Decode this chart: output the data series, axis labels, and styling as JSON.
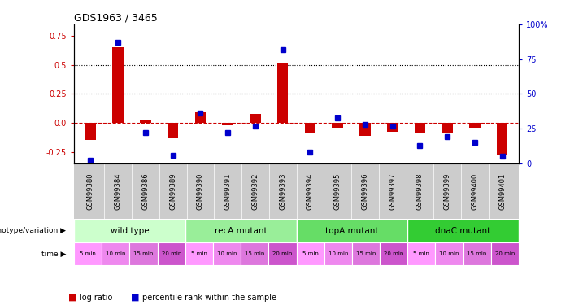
{
  "title": "GDS1963 / 3465",
  "samples": [
    "GSM99380",
    "GSM99384",
    "GSM99386",
    "GSM99389",
    "GSM99390",
    "GSM99391",
    "GSM99392",
    "GSM99393",
    "GSM99394",
    "GSM99395",
    "GSM99396",
    "GSM99397",
    "GSM99398",
    "GSM99399",
    "GSM99400",
    "GSM99401"
  ],
  "log_ratio": [
    -0.15,
    0.65,
    0.02,
    -0.13,
    0.09,
    -0.02,
    0.08,
    0.52,
    -0.09,
    -0.04,
    -0.11,
    -0.08,
    -0.09,
    -0.09,
    -0.04,
    -0.27
  ],
  "percentile": [
    0.02,
    0.87,
    0.22,
    0.06,
    0.36,
    0.22,
    0.27,
    0.82,
    0.08,
    0.33,
    0.28,
    0.27,
    0.13,
    0.19,
    0.15,
    0.05
  ],
  "log_ratio_color": "#cc0000",
  "percentile_color": "#0000cc",
  "ylim_left": [
    -0.35,
    0.85
  ],
  "ylim_right": [
    0,
    100
  ],
  "yticks_left": [
    -0.25,
    0.0,
    0.25,
    0.5,
    0.75
  ],
  "yticks_right": [
    0,
    25,
    50,
    75,
    100
  ],
  "hline_y": 0.0,
  "hline_color": "#cc0000",
  "dotted_lines": [
    0.25,
    0.5
  ],
  "bar_width": 0.4,
  "genotype_groups": [
    {
      "label": "wild type",
      "start": 0,
      "end": 3,
      "color": "#ccffcc"
    },
    {
      "label": "recA mutant",
      "start": 4,
      "end": 7,
      "color": "#99ee99"
    },
    {
      "label": "topA mutant",
      "start": 8,
      "end": 11,
      "color": "#66dd66"
    },
    {
      "label": "dnaC mutant",
      "start": 12,
      "end": 15,
      "color": "#33cc33"
    }
  ],
  "time_labels": [
    "5 min",
    "10 min",
    "15 min",
    "20 min",
    "5 min",
    "10 min",
    "15 min",
    "20 min",
    "5 min",
    "10 min",
    "15 min",
    "20 min",
    "5 min",
    "10 min",
    "15 min",
    "20 min"
  ],
  "time_colors": [
    "#ff99ff",
    "#ee88ee",
    "#dd77dd",
    "#cc55cc",
    "#ff99ff",
    "#ee88ee",
    "#dd77dd",
    "#cc55cc",
    "#ff99ff",
    "#ee88ee",
    "#dd77dd",
    "#cc55cc",
    "#ff99ff",
    "#ee88ee",
    "#dd77dd",
    "#cc55cc"
  ],
  "genotype_label": "genotype/variation",
  "time_label": "time",
  "legend_log_ratio": "log ratio",
  "legend_percentile": "percentile rank within the sample",
  "bg_color": "#ffffff",
  "tick_label_color_left": "#cc0000",
  "tick_label_color_right": "#0000cc",
  "xlabel_bg_color": "#cccccc"
}
